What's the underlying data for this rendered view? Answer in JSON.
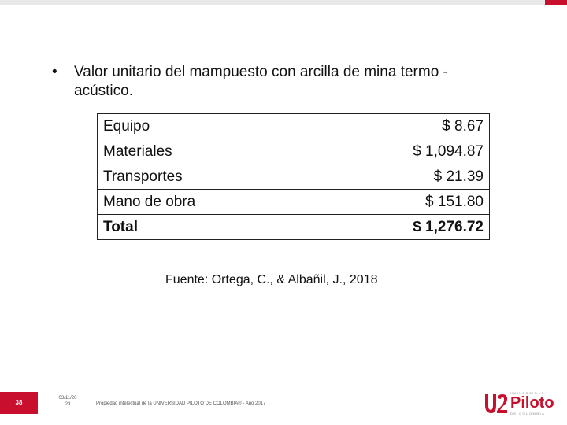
{
  "bullet": {
    "symbol": "•",
    "text": "Valor unitario del mampuesto con arcilla de mina termo - acústico."
  },
  "table": {
    "rows": [
      {
        "label": "Equipo",
        "value": "$ 8.67"
      },
      {
        "label": "Materiales",
        "value": "$ 1,094.87"
      },
      {
        "label": "Transportes",
        "value": "$ 21.39"
      },
      {
        "label": "Mano de obra",
        "value": "$ 151.80"
      }
    ],
    "total": {
      "label": "Total",
      "value": "$ 1,276.72"
    }
  },
  "source": "Fuente: Ortega, C., & Albañil, J., 2018",
  "footer": {
    "page_number": "38",
    "date_line1": "03/11/20",
    "date_line2": "23",
    "copyright": "Propiedad intelectual de la UNIVERSIDAD PILOTO DE COLOMBIA® - Año 2017"
  },
  "logo": {
    "top_text": "UNIVERSIDAD",
    "word": "Piloto",
    "bottom_text": "DE COLOMBIA"
  },
  "colors": {
    "brand_red": "#c8102e"
  }
}
